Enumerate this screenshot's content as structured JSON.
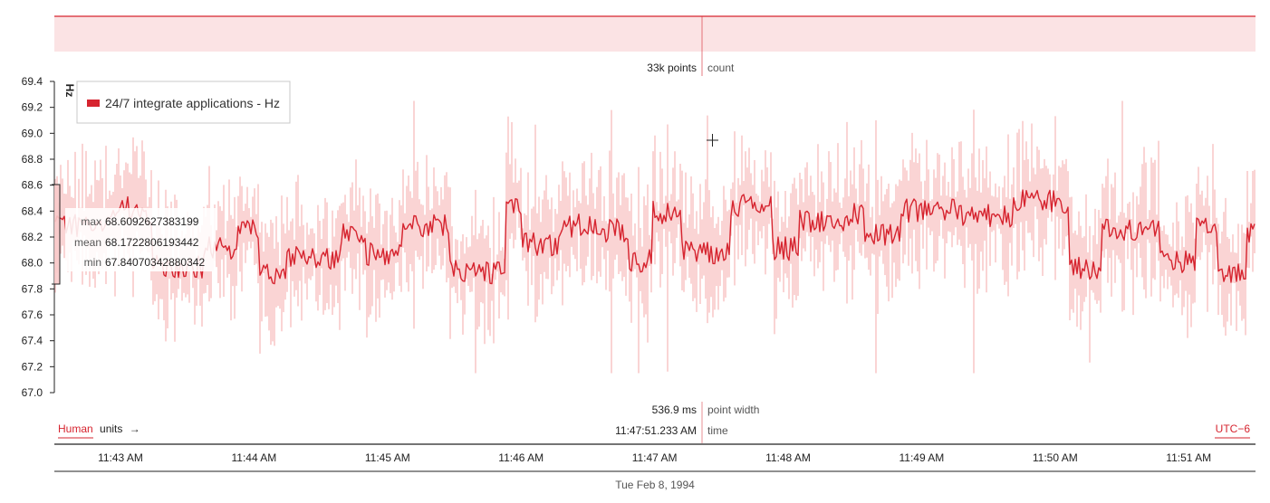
{
  "chart_data": {
    "type": "line",
    "series": [
      {
        "name": "24/7 integrate applications - Hz",
        "band": "min/max",
        "stats": {
          "max": "68.6092627383199",
          "mean": "68.1722806193442",
          "min": "67.84070342880342"
        }
      }
    ],
    "ylabel": "Hz",
    "ylim": [
      67.0,
      69.4
    ],
    "yticks": [
      "67.0",
      "67.2",
      "67.4",
      "67.6",
      "67.8",
      "68.0",
      "68.2",
      "68.4",
      "68.6",
      "68.8",
      "69.0",
      "69.2",
      "69.4"
    ],
    "xticks": [
      "11:43 AM",
      "11:44 AM",
      "11:45 AM",
      "11:46 AM",
      "11:47 AM",
      "11:48 AM",
      "11:49 AM",
      "11:50 AM",
      "11:51 AM"
    ],
    "xlabel": "Tue Feb 8, 1994",
    "grid": false,
    "legend_position": "top-left",
    "colors": {
      "line": "#d6242f",
      "band": "#f8caca",
      "overview": "#fbe3e4"
    }
  },
  "stats_labels": {
    "max": "max",
    "mean": "mean",
    "min": "min"
  },
  "cursor": {
    "count_value": "33k points",
    "count_label": "count",
    "point_width_value": "536.9 ms",
    "point_width_label": "point width",
    "time_value": "11:47:51.233 AM",
    "time_label": "time"
  },
  "units": {
    "mode": "Human",
    "label": "units",
    "arrow": "→"
  },
  "timezone": "UTC−6"
}
